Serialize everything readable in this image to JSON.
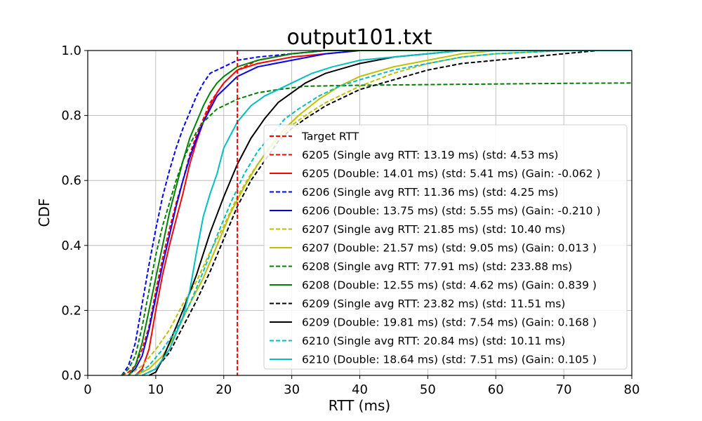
{
  "chart_data": {
    "type": "line",
    "title": "output101.txt",
    "xlabel": "RTT (ms)",
    "ylabel": "CDF",
    "xlim": [
      0,
      80
    ],
    "ylim": [
      0,
      1
    ],
    "xticks": [
      "0",
      "10",
      "20",
      "30",
      "40",
      "50",
      "60",
      "70",
      "80"
    ],
    "yticks": [
      "0.0",
      "0.2",
      "0.4",
      "0.6",
      "0.8",
      "1.0"
    ],
    "grid": true,
    "legend_position": "lower right",
    "target_rtt": {
      "name": "Target RTT",
      "x": 22,
      "color": "#ff0000",
      "style": "dashed"
    },
    "series": [
      {
        "name": "6205 (Single avg RTT: 13.19 ms) (std: 4.53 ms)",
        "color": "#ff0000",
        "style": "dashed",
        "points": [
          [
            5,
            0
          ],
          [
            6,
            0.01
          ],
          [
            7,
            0.03
          ],
          [
            8,
            0.08
          ],
          [
            9,
            0.15
          ],
          [
            10,
            0.26
          ],
          [
            11,
            0.36
          ],
          [
            12,
            0.45
          ],
          [
            13,
            0.53
          ],
          [
            14,
            0.6
          ],
          [
            15,
            0.68
          ],
          [
            16,
            0.74
          ],
          [
            17,
            0.79
          ],
          [
            18,
            0.84
          ],
          [
            19,
            0.87
          ],
          [
            20,
            0.9
          ],
          [
            22,
            0.94
          ],
          [
            25,
            0.97
          ],
          [
            30,
            0.99
          ],
          [
            35,
            1.0
          ],
          [
            80,
            1.0
          ]
        ]
      },
      {
        "name": "6205 (Double: 14.01 ms) (std: 5.41 ms) (Gain: -0.062 )",
        "color": "#ff0000",
        "style": "solid",
        "points": [
          [
            7,
            0
          ],
          [
            8,
            0.02
          ],
          [
            9,
            0.08
          ],
          [
            10,
            0.2
          ],
          [
            11,
            0.31
          ],
          [
            12,
            0.4
          ],
          [
            13,
            0.48
          ],
          [
            14,
            0.56
          ],
          [
            15,
            0.65
          ],
          [
            16,
            0.72
          ],
          [
            17,
            0.78
          ],
          [
            18,
            0.83
          ],
          [
            19,
            0.87
          ],
          [
            20,
            0.9
          ],
          [
            22,
            0.94
          ],
          [
            25,
            0.96
          ],
          [
            30,
            0.98
          ],
          [
            35,
            0.99
          ],
          [
            40,
            1.0
          ],
          [
            80,
            1.0
          ]
        ]
      },
      {
        "name": "6206 (Single avg RTT: 11.36 ms) (std: 4.25 ms)",
        "color": "#0000ff",
        "style": "dashed",
        "points": [
          [
            5,
            0
          ],
          [
            6,
            0.03
          ],
          [
            7,
            0.1
          ],
          [
            8,
            0.22
          ],
          [
            9,
            0.34
          ],
          [
            10,
            0.45
          ],
          [
            11,
            0.55
          ],
          [
            12,
            0.63
          ],
          [
            13,
            0.7
          ],
          [
            14,
            0.76
          ],
          [
            15,
            0.81
          ],
          [
            16,
            0.86
          ],
          [
            17,
            0.9
          ],
          [
            18,
            0.93
          ],
          [
            20,
            0.95
          ],
          [
            22,
            0.97
          ],
          [
            25,
            0.98
          ],
          [
            30,
            0.99
          ],
          [
            35,
            1.0
          ],
          [
            80,
            1.0
          ]
        ]
      },
      {
        "name": "6206 (Double: 13.75 ms) (std: 5.55 ms) (Gain: -0.210 )",
        "color": "#0000ff",
        "style": "solid",
        "points": [
          [
            6,
            0
          ],
          [
            7,
            0.02
          ],
          [
            8,
            0.06
          ],
          [
            9,
            0.14
          ],
          [
            10,
            0.24
          ],
          [
            11,
            0.34
          ],
          [
            12,
            0.43
          ],
          [
            13,
            0.52
          ],
          [
            14,
            0.6
          ],
          [
            15,
            0.67
          ],
          [
            16,
            0.73
          ],
          [
            17,
            0.78
          ],
          [
            18,
            0.82
          ],
          [
            19,
            0.86
          ],
          [
            20,
            0.88
          ],
          [
            22,
            0.92
          ],
          [
            25,
            0.95
          ],
          [
            30,
            0.97
          ],
          [
            35,
            0.99
          ],
          [
            40,
            1.0
          ],
          [
            80,
            1.0
          ]
        ]
      },
      {
        "name": "6207 (Single avg RTT: 21.85 ms) (std: 10.40 ms)",
        "color": "#bfbf00",
        "style": "dashed",
        "points": [
          [
            6,
            0
          ],
          [
            8,
            0.03
          ],
          [
            10,
            0.08
          ],
          [
            12,
            0.14
          ],
          [
            14,
            0.22
          ],
          [
            16,
            0.29
          ],
          [
            18,
            0.38
          ],
          [
            20,
            0.46
          ],
          [
            22,
            0.55
          ],
          [
            24,
            0.62
          ],
          [
            26,
            0.68
          ],
          [
            28,
            0.73
          ],
          [
            30,
            0.77
          ],
          [
            32,
            0.8
          ],
          [
            35,
            0.84
          ],
          [
            40,
            0.89
          ],
          [
            45,
            0.93
          ],
          [
            50,
            0.96
          ],
          [
            55,
            0.98
          ],
          [
            60,
            0.99
          ],
          [
            70,
            1.0
          ],
          [
            80,
            1.0
          ]
        ]
      },
      {
        "name": "6207 (Double: 21.57 ms) (std: 9.05 ms) (Gain: 0.013 )",
        "color": "#bfbf00",
        "style": "solid",
        "points": [
          [
            7,
            0
          ],
          [
            9,
            0.02
          ],
          [
            11,
            0.06
          ],
          [
            13,
            0.13
          ],
          [
            15,
            0.22
          ],
          [
            17,
            0.3
          ],
          [
            19,
            0.4
          ],
          [
            21,
            0.5
          ],
          [
            23,
            0.58
          ],
          [
            25,
            0.65
          ],
          [
            27,
            0.71
          ],
          [
            29,
            0.76
          ],
          [
            31,
            0.8
          ],
          [
            34,
            0.85
          ],
          [
            37,
            0.89
          ],
          [
            40,
            0.92
          ],
          [
            45,
            0.95
          ],
          [
            50,
            0.97
          ],
          [
            55,
            0.99
          ],
          [
            60,
            1.0
          ],
          [
            80,
            1.0
          ]
        ]
      },
      {
        "name": "6208 (Single avg RTT: 77.91 ms) (std: 233.88 ms)",
        "color": "#008000",
        "style": "dashed",
        "points": [
          [
            5,
            0
          ],
          [
            6,
            0.02
          ],
          [
            7,
            0.06
          ],
          [
            8,
            0.15
          ],
          [
            9,
            0.26
          ],
          [
            10,
            0.37
          ],
          [
            11,
            0.46
          ],
          [
            12,
            0.53
          ],
          [
            13,
            0.6
          ],
          [
            14,
            0.66
          ],
          [
            15,
            0.71
          ],
          [
            16,
            0.75
          ],
          [
            17,
            0.78
          ],
          [
            18,
            0.8
          ],
          [
            19,
            0.82
          ],
          [
            20,
            0.83
          ],
          [
            22,
            0.85
          ],
          [
            25,
            0.87
          ],
          [
            28,
            0.88
          ],
          [
            32,
            0.89
          ],
          [
            40,
            0.893
          ],
          [
            50,
            0.895
          ],
          [
            60,
            0.897
          ],
          [
            70,
            0.899
          ],
          [
            80,
            0.9
          ]
        ]
      },
      {
        "name": "6208 (Double: 12.55 ms) (std: 4.62 ms) (Gain: 0.839 )",
        "color": "#008000",
        "style": "solid",
        "points": [
          [
            6,
            0
          ],
          [
            7,
            0.03
          ],
          [
            8,
            0.1
          ],
          [
            9,
            0.2
          ],
          [
            10,
            0.3
          ],
          [
            11,
            0.4
          ],
          [
            12,
            0.5
          ],
          [
            13,
            0.58
          ],
          [
            14,
            0.66
          ],
          [
            15,
            0.73
          ],
          [
            16,
            0.78
          ],
          [
            17,
            0.83
          ],
          [
            18,
            0.87
          ],
          [
            19,
            0.9
          ],
          [
            20,
            0.92
          ],
          [
            22,
            0.95
          ],
          [
            25,
            0.97
          ],
          [
            30,
            0.99
          ],
          [
            35,
            1.0
          ],
          [
            80,
            1.0
          ]
        ]
      },
      {
        "name": "6209 (Single avg RTT: 23.82 ms) (std: 11.51 ms)",
        "color": "#000000",
        "style": "dashed",
        "points": [
          [
            8,
            0
          ],
          [
            10,
            0.02
          ],
          [
            12,
            0.07
          ],
          [
            14,
            0.15
          ],
          [
            16,
            0.23
          ],
          [
            18,
            0.32
          ],
          [
            20,
            0.42
          ],
          [
            22,
            0.52
          ],
          [
            24,
            0.6
          ],
          [
            26,
            0.66
          ],
          [
            28,
            0.72
          ],
          [
            30,
            0.76
          ],
          [
            32,
            0.79
          ],
          [
            35,
            0.83
          ],
          [
            40,
            0.88
          ],
          [
            45,
            0.91
          ],
          [
            50,
            0.94
          ],
          [
            55,
            0.96
          ],
          [
            60,
            0.97
          ],
          [
            65,
            0.98
          ],
          [
            70,
            0.99
          ],
          [
            75,
            1.0
          ],
          [
            80,
            1.0
          ]
        ]
      },
      {
        "name": "6209 (Double: 19.81 ms) (std: 7.54 ms) (Gain: 0.168 )",
        "color": "#000000",
        "style": "solid",
        "points": [
          [
            9,
            0
          ],
          [
            10,
            0.01
          ],
          [
            11,
            0.05
          ],
          [
            12,
            0.1
          ],
          [
            13,
            0.15
          ],
          [
            14,
            0.2
          ],
          [
            16,
            0.31
          ],
          [
            18,
            0.44
          ],
          [
            20,
            0.55
          ],
          [
            22,
            0.65
          ],
          [
            24,
            0.73
          ],
          [
            26,
            0.79
          ],
          [
            28,
            0.84
          ],
          [
            30,
            0.87
          ],
          [
            32,
            0.9
          ],
          [
            35,
            0.93
          ],
          [
            40,
            0.96
          ],
          [
            45,
            0.98
          ],
          [
            50,
            0.99
          ],
          [
            55,
            1.0
          ],
          [
            80,
            1.0
          ]
        ]
      },
      {
        "name": "6210 (Single avg RTT: 20.84 ms) (std: 10.11 ms)",
        "color": "#00bfbf",
        "style": "dashed",
        "points": [
          [
            7,
            0
          ],
          [
            9,
            0.03
          ],
          [
            11,
            0.08
          ],
          [
            13,
            0.14
          ],
          [
            15,
            0.22
          ],
          [
            17,
            0.32
          ],
          [
            19,
            0.43
          ],
          [
            21,
            0.53
          ],
          [
            23,
            0.62
          ],
          [
            25,
            0.69
          ],
          [
            27,
            0.74
          ],
          [
            29,
            0.79
          ],
          [
            31,
            0.82
          ],
          [
            34,
            0.86
          ],
          [
            37,
            0.89
          ],
          [
            40,
            0.91
          ],
          [
            45,
            0.94
          ],
          [
            50,
            0.96
          ],
          [
            55,
            0.98
          ],
          [
            60,
            0.99
          ],
          [
            70,
            1.0
          ],
          [
            80,
            1.0
          ]
        ]
      },
      {
        "name": "6210 (Double: 18.64 ms) (std: 7.51 ms) (Gain: 0.105 )",
        "color": "#00bfbf",
        "style": "solid",
        "points": [
          [
            8,
            0
          ],
          [
            10,
            0.02
          ],
          [
            12,
            0.08
          ],
          [
            14,
            0.18
          ],
          [
            15,
            0.26
          ],
          [
            16,
            0.38
          ],
          [
            17,
            0.49
          ],
          [
            18,
            0.56
          ],
          [
            19,
            0.62
          ],
          [
            20,
            0.7
          ],
          [
            21,
            0.74
          ],
          [
            22,
            0.78
          ],
          [
            24,
            0.83
          ],
          [
            26,
            0.86
          ],
          [
            28,
            0.88
          ],
          [
            30,
            0.9
          ],
          [
            33,
            0.93
          ],
          [
            36,
            0.95
          ],
          [
            40,
            0.97
          ],
          [
            45,
            0.98
          ],
          [
            50,
            0.99
          ],
          [
            55,
            1.0
          ],
          [
            80,
            1.0
          ]
        ]
      }
    ]
  }
}
